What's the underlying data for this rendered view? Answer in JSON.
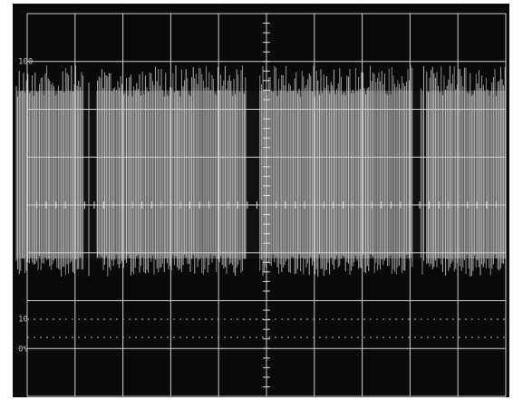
{
  "graticule": {
    "labels": [
      "100",
      "10",
      "0%"
    ]
  }
}
